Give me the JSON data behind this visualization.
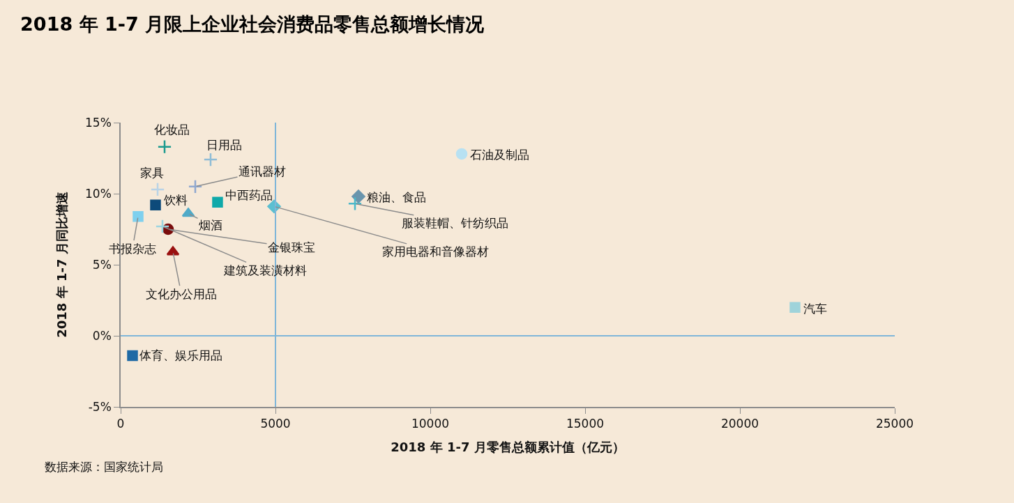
{
  "chart_data": {
    "type": "scatter",
    "title": "2018 年 1-7 月限上企业社会消费品零售总额增长情况",
    "xlabel": "2018 年 1-7 月零售总额累计值（亿元）",
    "ylabel": "2018 年 1-7 月同比增速",
    "annotations": [
      "数据来源：国家统计局"
    ],
    "xlim": [
      0,
      25000
    ],
    "xticks": [
      0,
      5000,
      10000,
      15000,
      20000,
      25000
    ],
    "ylim": [
      -5,
      15
    ],
    "yticks": [
      {
        "value": -5,
        "label": "-5%"
      },
      {
        "value": 0,
        "label": "0%"
      },
      {
        "value": 5,
        "label": "5%"
      },
      {
        "value": 10,
        "label": "10%"
      },
      {
        "value": 15,
        "label": "15%"
      }
    ],
    "grid": false,
    "ref_lines": [
      {
        "axis": "x",
        "value": 5000,
        "color": "#7fb6d9"
      },
      {
        "axis": "y",
        "value": 0,
        "color": "#7fb6d9"
      }
    ],
    "series": [
      {
        "name": "化妆品",
        "color": "#1a9a8e",
        "marker": "cross",
        "x": [
          1419
        ],
        "values": [
          13.3
        ]
      },
      {
        "name": "日用品",
        "color": "#8fbcd6",
        "marker": "cross",
        "x": [
          2905
        ],
        "values": [
          12.4
        ]
      },
      {
        "name": "家具",
        "color": "#b9d3e6",
        "marker": "cross",
        "x": [
          1194
        ],
        "values": [
          10.3
        ]
      },
      {
        "name": "通讯器材",
        "color": "#8fa8cf",
        "marker": "cross",
        "x": [
          2410
        ],
        "values": [
          10.5
        ]
      },
      {
        "name": "饮料",
        "color": "#0d4a7a",
        "marker": "square",
        "x": [
          1126
        ],
        "values": [
          9.2
        ]
      },
      {
        "name": "中西药品",
        "color": "#0fa9a9",
        "marker": "square",
        "x": [
          3130
        ],
        "values": [
          9.4
        ]
      },
      {
        "name": "烟酒",
        "color": "#4faac8",
        "marker": "triangle",
        "x": [
          2185
        ],
        "values": [
          8.6
        ]
      },
      {
        "name": "书报杂志",
        "color": "#7fd0ee",
        "marker": "square",
        "x": [
          563
        ],
        "values": [
          8.4
        ]
      },
      {
        "name": "金银珠宝",
        "color": "#7a0c0c",
        "marker": "circle",
        "x": [
          1532
        ],
        "values": [
          7.5
        ]
      },
      {
        "name": "建筑及装潢材料",
        "color": "#9dd5e0",
        "marker": "cross",
        "x": [
          1351
        ],
        "values": [
          7.7
        ]
      },
      {
        "name": "文化办公用品",
        "color": "#9a1010",
        "marker": "triangle",
        "x": [
          1689
        ],
        "values": [
          5.9
        ]
      },
      {
        "name": "石油及制品",
        "color": "#b8e1f2",
        "marker": "circle",
        "x": [
          11014
        ],
        "values": [
          12.8
        ]
      },
      {
        "name": "粮油、食品",
        "color": "#6a95ad",
        "marker": "diamond",
        "x": [
          7680
        ],
        "values": [
          9.8
        ]
      },
      {
        "name": "服装鞋帽、针纺织品",
        "color": "#4bb8c9",
        "marker": "cross",
        "x": [
          7568
        ],
        "values": [
          9.3
        ]
      },
      {
        "name": "家用电器和音像器材",
        "color": "#5bbfd1",
        "marker": "diamond",
        "x": [
          4955
        ],
        "values": [
          9.1
        ]
      },
      {
        "name": "汽车",
        "color": "#9fd3da",
        "marker": "square",
        "x": [
          21779
        ],
        "values": [
          2.0
        ]
      },
      {
        "name": "体育、娱乐用品",
        "color": "#1f6aa5",
        "marker": "square",
        "x": [
          383
        ],
        "values": [
          -1.4
        ]
      }
    ]
  }
}
